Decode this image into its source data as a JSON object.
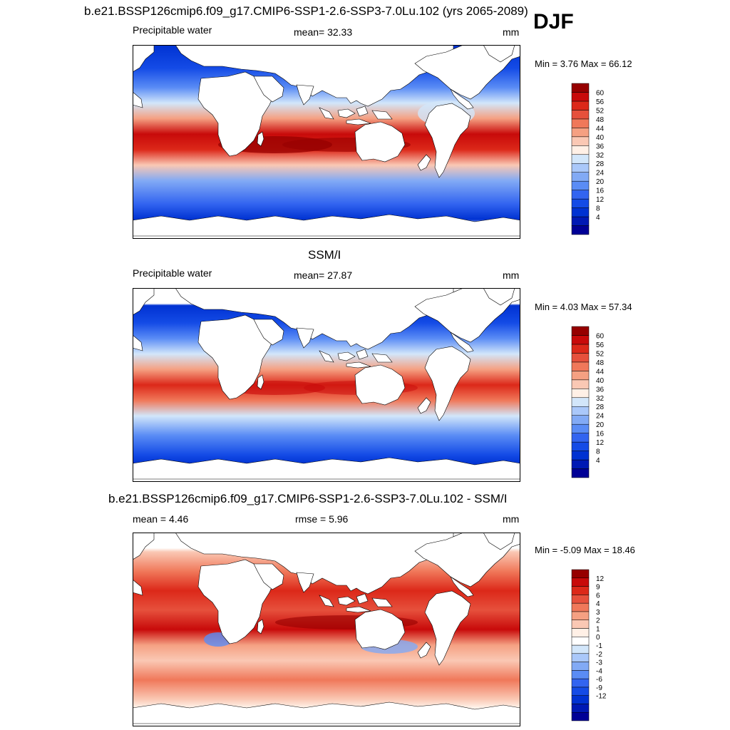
{
  "season": "DJF",
  "colors": {
    "pw": [
      "#000096",
      "#0019b4",
      "#0032d2",
      "#144be6",
      "#3264f0",
      "#5a8cf5",
      "#82aaf5",
      "#aac8fa",
      "#d2e6fa",
      "#fff0e6",
      "#fac8b4",
      "#f5a082",
      "#f0785a",
      "#e6503c",
      "#dc2819",
      "#c80a0a",
      "#960000"
    ],
    "diff": [
      "#000096",
      "#0019b4",
      "#0032d2",
      "#144be6",
      "#3264f0",
      "#5a8cf5",
      "#82aaf5",
      "#aac8fa",
      "#d2e6fa",
      "#ffffff",
      "#fff0e6",
      "#fac8b4",
      "#f5a082",
      "#f0785a",
      "#e6503c",
      "#dc2819",
      "#c80a0a",
      "#960000"
    ]
  },
  "panels": [
    {
      "title": "b.e21.BSSP126cmip6.f09_g17.CMIP6-SSP1-2.6-SSP3-7.0Lu.102 (yrs 2065-2089)",
      "left": "Precipitable water",
      "mid": "mean=  32.33",
      "units": "mm",
      "minmax": "Min =   3.76 Max =  66.12"
    },
    {
      "title": "SSM/I",
      "left": "Precipitable water",
      "mid": "mean=  27.87",
      "units": "mm",
      "minmax": "Min =   4.03 Max =  57.34"
    },
    {
      "title": "b.e21.BSSP126cmip6.f09_g17.CMIP6-SSP1-2.6-SSP3-7.0Lu.102 - SSM/I",
      "left": "mean =   4.46",
      "mid": "rmse =   5.96",
      "units": "mm",
      "minmax": "Min =  -5.09 Max =  18.46"
    }
  ],
  "chart_data": [
    {
      "type": "heatmap",
      "title": "b.e21.BSSP126cmip6.f09_g17.CMIP6-SSP1-2.6-SSP3-7.0Lu.102 (yrs 2065-2089)",
      "variable": "Precipitable water",
      "units": "mm",
      "mean": 32.33,
      "min": 3.76,
      "max": 66.12,
      "colorbar_levels": [
        "4",
        "8",
        "12",
        "16",
        "20",
        "24",
        "28",
        "32",
        "36",
        "40",
        "44",
        "48",
        "52",
        "56",
        "60"
      ]
    },
    {
      "type": "heatmap",
      "title": "SSM/I",
      "variable": "Precipitable water",
      "units": "mm",
      "mean": 27.87,
      "min": 4.03,
      "max": 57.34,
      "colorbar_levels": [
        "4",
        "8",
        "12",
        "16",
        "20",
        "24",
        "28",
        "32",
        "36",
        "40",
        "44",
        "48",
        "52",
        "56",
        "60"
      ]
    },
    {
      "type": "heatmap",
      "title": "b.e21.BSSP126cmip6.f09_g17.CMIP6-SSP1-2.6-SSP3-7.0Lu.102 - SSM/I",
      "units": "mm",
      "mean": 4.46,
      "rmse": 5.96,
      "min": -5.09,
      "max": 18.46,
      "colorbar_levels": [
        "-12",
        "-9",
        "-6",
        "-4",
        "-3",
        "-2",
        "-1",
        "0",
        "1",
        "2",
        "3",
        "4",
        "6",
        "9",
        "12"
      ]
    }
  ]
}
